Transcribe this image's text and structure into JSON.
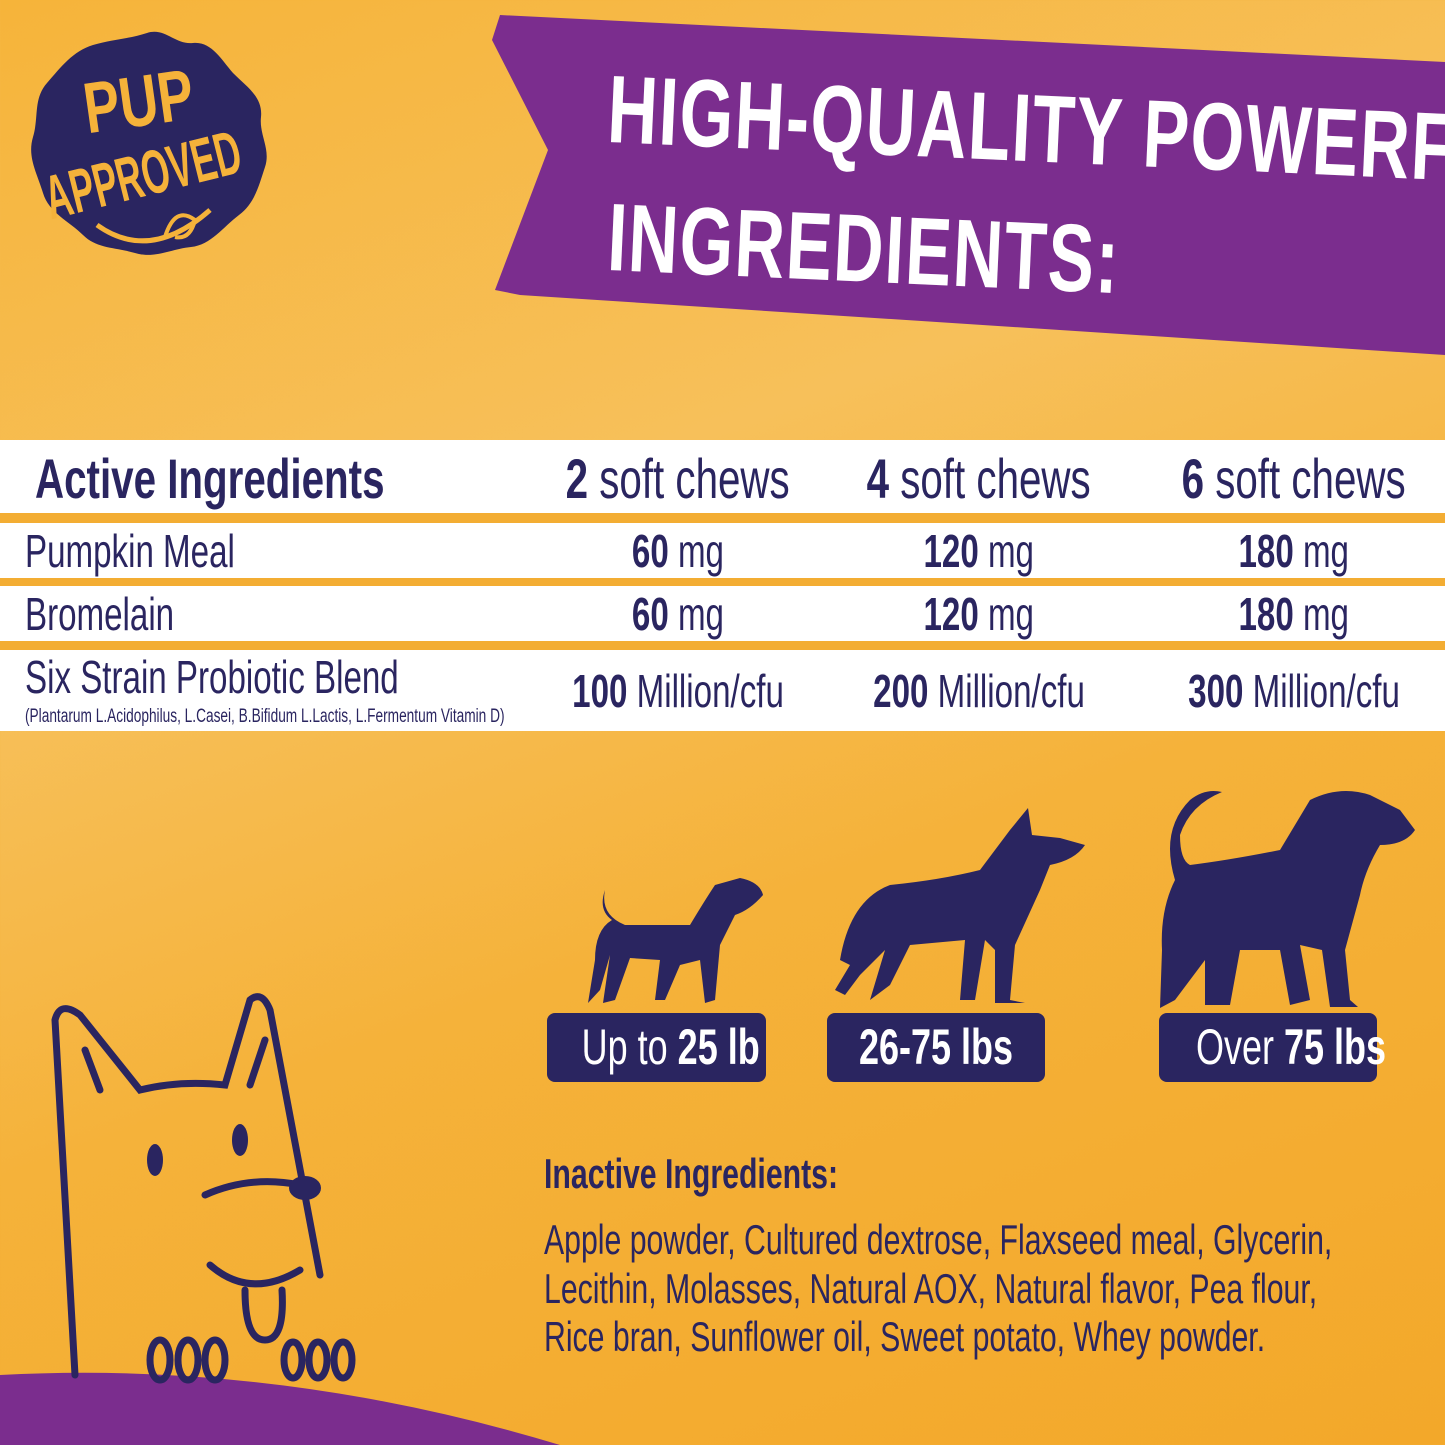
{
  "badge_logo": {
    "line1": "PUP",
    "line2": "APPROVED"
  },
  "banner": {
    "line1": "HIGH-QUALITY POWERFUL",
    "line2": "INGREDIENTS:"
  },
  "table": {
    "headers": [
      {
        "label": "Active Ingredients"
      },
      {
        "num": "2",
        "unit": " soft chews"
      },
      {
        "num": "4",
        "unit": " soft chews"
      },
      {
        "num": "6",
        "unit": " soft chews"
      }
    ],
    "rows": [
      {
        "name": "Pumpkin Meal",
        "values": [
          {
            "num": "60",
            "unit": " mg"
          },
          {
            "num": "120",
            "unit": " mg"
          },
          {
            "num": "180",
            "unit": " mg"
          }
        ]
      },
      {
        "name": "Bromelain",
        "values": [
          {
            "num": "60",
            "unit": " mg"
          },
          {
            "num": "120",
            "unit": " mg"
          },
          {
            "num": "180",
            "unit": " mg"
          }
        ]
      },
      {
        "name": "Six Strain Probiotic Blend",
        "note": "(Plantarum L.Acidophilus, L.Casei, B.Bifidum L.Lactis, L.Fermentum Vitamin D)",
        "values": [
          {
            "num": "100",
            "unit": " Million/cfu"
          },
          {
            "num": "200",
            "unit": " Million/cfu"
          },
          {
            "num": "300",
            "unit": " Million/cfu"
          }
        ]
      }
    ]
  },
  "weights": [
    {
      "pre": "Up to ",
      "bold": "25 lb"
    },
    {
      "pre": "",
      "bold": "26-75 lbs"
    },
    {
      "pre": "Over ",
      "bold": "75 lbs"
    }
  ],
  "inactive": {
    "title": "Inactive Ingredients:",
    "lines": [
      "Apple powder, Cultured dextrose, Flaxseed meal, Glycerin,",
      "Lecithin, Molasses, Natural AOX, Natural flavor, Pea flour,",
      "Rice bran, Sunflower oil, Sweet potato, Whey powder."
    ]
  },
  "colors": {
    "background": "#f5b23a",
    "banner": "#7b2d8e",
    "navy": "#2a2560",
    "band": "#f3ad33"
  }
}
